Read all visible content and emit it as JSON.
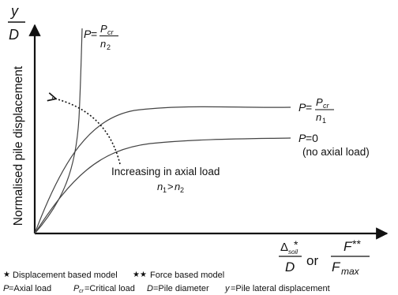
{
  "axes": {
    "y_top": "y",
    "y_bottom": "D",
    "y_label": "Normalised pile displacement",
    "x_left_top": "Δ",
    "x_left_sub": "soil",
    "x_left_star": "*",
    "x_left_bottom": "D",
    "x_or": "or",
    "x_right_top": "F",
    "x_right_star": "**",
    "x_right_bottom": "F",
    "x_right_sub": "max"
  },
  "curves": {
    "critical": {
      "lhs": "P",
      "eq": "=",
      "num": "P",
      "num_sub": "cr",
      "den": "n",
      "den_sub": "2"
    },
    "middle": {
      "lhs": "P",
      "eq": "=",
      "num": "P",
      "num_sub": "cr",
      "den": "n",
      "den_sub": "1"
    },
    "zero": {
      "label": "=0",
      "lhs": "P",
      "note": "(no axial load)"
    }
  },
  "annotation": {
    "text": "Increasing in axial load",
    "relation_left": "n",
    "relation_left_sub": "1",
    "relation_gt": ">",
    "relation_right": "n",
    "relation_right_sub": "2"
  },
  "legend": {
    "star_one": "★",
    "star_one_text": "Displacement based model",
    "star_two": "★★",
    "star_two_text": "Force based model",
    "defs": [
      {
        "sym": "P",
        "sub": "",
        "text": "=Axial load"
      },
      {
        "sym": "P",
        "sub": "cr",
        "text": "=Critical load"
      },
      {
        "sym": "D",
        "sub": "",
        "text": "=Pile diameter"
      },
      {
        "sym": "y",
        "sub": "",
        "text": "=Pile lateral displacement"
      }
    ]
  }
}
